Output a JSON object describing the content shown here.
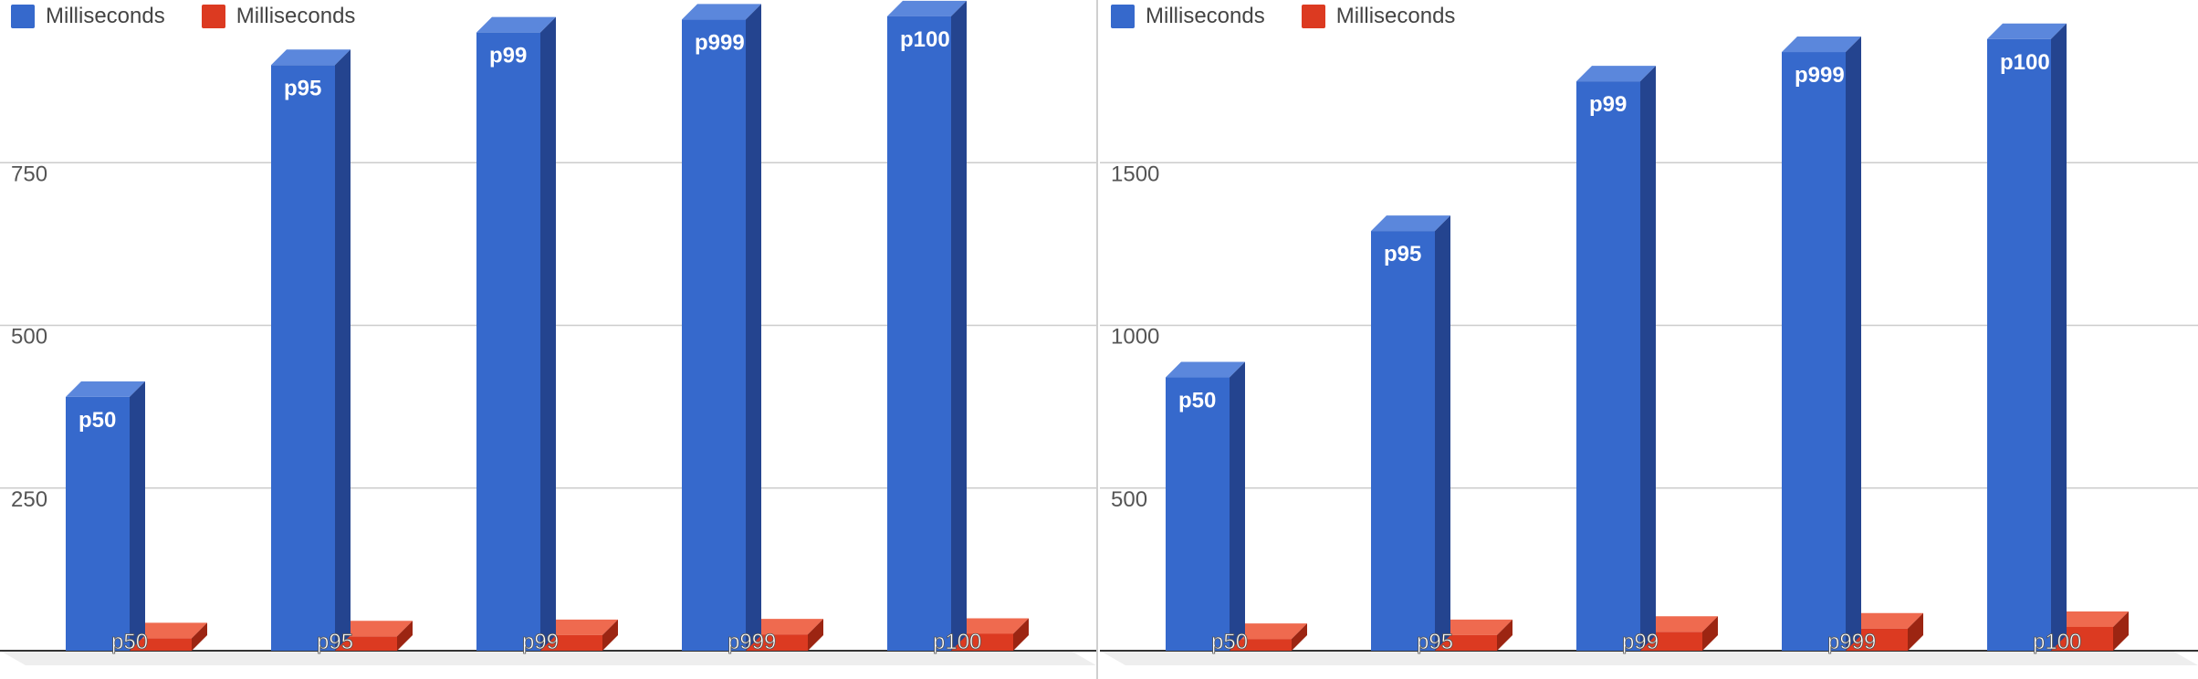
{
  "colors": {
    "blue_front": "#3669cc",
    "blue_side": "#24448f",
    "blue_top": "#5b87dc",
    "red_front": "#dc3a21",
    "red_side": "#9c2512",
    "red_top": "#ef6a4f",
    "grid": "#cccccc",
    "axis_text": "#555555",
    "legend_text": "#444444",
    "floor": "#eeeeee"
  },
  "chart_data": [
    {
      "type": "bar",
      "categories": [
        "p50",
        "p95",
        "p99",
        "p999",
        "p100"
      ],
      "series": [
        {
          "name": "Milliseconds",
          "color": "#3669cc",
          "values": [
            390,
            900,
            950,
            970,
            975
          ]
        },
        {
          "name": "Milliseconds",
          "color": "#dc3a21",
          "values": [
            5,
            8,
            10,
            11,
            12
          ]
        }
      ],
      "ylim": [
        0,
        1000
      ],
      "yticks": [
        250,
        500,
        750
      ],
      "bar_labels": [
        "p50",
        "p95",
        "p99",
        "p999",
        "p100"
      ],
      "grid": true,
      "legend": "top-left",
      "style": "3d"
    },
    {
      "type": "bar",
      "categories": [
        "p50",
        "p95",
        "p99",
        "p999",
        "p100"
      ],
      "series": [
        {
          "name": "Milliseconds",
          "color": "#3669cc",
          "values": [
            840,
            1290,
            1750,
            1840,
            1880
          ]
        },
        {
          "name": "Milliseconds",
          "color": "#dc3a21",
          "values": [
            8,
            20,
            30,
            40,
            45
          ]
        }
      ],
      "ylim": [
        0,
        2000
      ],
      "yticks": [
        500,
        1000,
        1500
      ],
      "bar_labels": [
        "p50",
        "p95",
        "p99",
        "p999",
        "p100"
      ],
      "grid": true,
      "legend": "top-left",
      "style": "3d"
    }
  ]
}
